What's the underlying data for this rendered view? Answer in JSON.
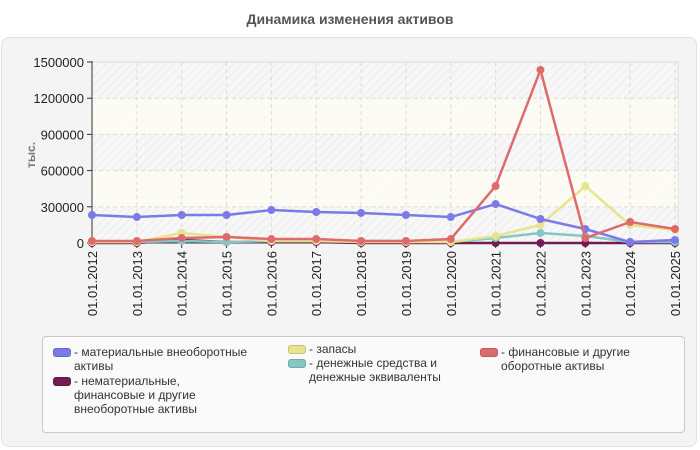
{
  "title": "Динамика изменения активов",
  "y_axis_label": "тыс.",
  "legend": [
    {
      "label": "- материальные внеоборотные\nактивы",
      "color": "#7b7be8"
    },
    {
      "label": "- нематериальные,\nфинансовые и другие\nвнеоборотные активы",
      "color": "#731b52"
    },
    {
      "label": "- запасы",
      "color": "#e6e48f"
    },
    {
      "label": "- денежные средства и\nденежные эквиваленты",
      "color": "#86c6c6"
    },
    {
      "label": "- финансовые и другие\nоборотные активы",
      "color": "#dd6b6b"
    }
  ],
  "chart_data": {
    "type": "line",
    "title": "Динамика изменения активов",
    "xlabel": "",
    "ylabel": "тыс.",
    "ylim": [
      0,
      1500000
    ],
    "yticks": [
      0,
      300000,
      600000,
      900000,
      1200000,
      1500000
    ],
    "grid": true,
    "legend_position": "bottom",
    "categories": [
      "01.01.2012",
      "01.01.2013",
      "01.01.2014",
      "01.01.2015",
      "01.01.2016",
      "01.01.2017",
      "01.01.2018",
      "01.01.2019",
      "01.01.2020",
      "01.01.2021",
      "01.01.2022",
      "01.01.2023",
      "01.01.2024",
      "01.01.2025"
    ],
    "series": [
      {
        "name": "материальные внеоборотные активы",
        "color": "#7b7be8",
        "values": [
          232000,
          215000,
          232000,
          232000,
          273000,
          257000,
          249000,
          232000,
          215000,
          323000,
          199000,
          116000,
          8000,
          25000
        ]
      },
      {
        "name": "нематериальные, финансовые и другие внеоборотные активы",
        "color": "#731b52",
        "values": [
          0,
          0,
          25000,
          8000,
          8000,
          8000,
          0,
          0,
          0,
          0,
          0,
          0,
          0,
          0
        ]
      },
      {
        "name": "запасы",
        "color": "#e6e48f",
        "values": [
          8000,
          8000,
          83000,
          50000,
          17000,
          17000,
          8000,
          8000,
          8000,
          58000,
          149000,
          472000,
          149000,
          108000
        ]
      },
      {
        "name": "денежные средства и денежные эквиваленты",
        "color": "#86c6c6",
        "values": [
          8000,
          8000,
          17000,
          8000,
          17000,
          17000,
          17000,
          17000,
          8000,
          41000,
          83000,
          58000,
          8000,
          8000
        ]
      },
      {
        "name": "финансовые и другие оборотные активы",
        "color": "#dd6b6b",
        "values": [
          17000,
          17000,
          41000,
          50000,
          33000,
          33000,
          17000,
          17000,
          33000,
          472000,
          1434000,
          41000,
          174000,
          116000
        ]
      }
    ]
  }
}
